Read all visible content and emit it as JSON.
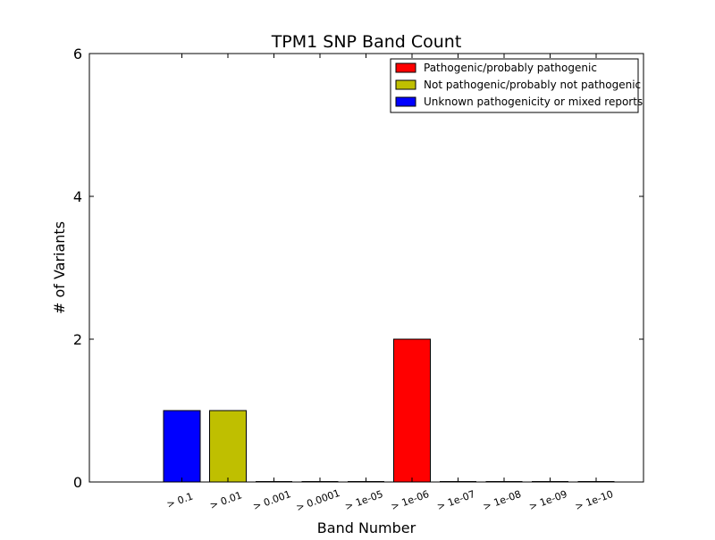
{
  "chart_data": {
    "type": "bar",
    "title": "TPM1 SNP Band Count",
    "xlabel": "Band Number",
    "ylabel": "# of Variants",
    "ylim": [
      0,
      6
    ],
    "yticks": [
      "0",
      "2",
      "4",
      "6"
    ],
    "categories": [
      "> 0.1",
      "> 0.01",
      "> 0.001",
      "> 0.0001",
      "> 1e-05",
      "> 1e-06",
      "> 1e-07",
      "> 1e-08",
      "> 1e-09",
      "> 1e-10"
    ],
    "series": [
      {
        "name": "Pathogenic/probably pathogenic",
        "color": "#ff0000",
        "values": [
          0,
          0,
          0,
          0,
          0,
          2,
          0,
          0,
          0,
          0
        ]
      },
      {
        "name": "Not pathogenic/probably not pathogenic",
        "color": "#bfbf00",
        "values": [
          0,
          1,
          0,
          0,
          0,
          0,
          0,
          0,
          0,
          0
        ]
      },
      {
        "name": "Unknown pathogenicity or mixed reports",
        "color": "#0000ff",
        "values": [
          1,
          0,
          0,
          0,
          0,
          0,
          0,
          0,
          0,
          0
        ]
      }
    ],
    "grid": false,
    "legend": "top-right"
  }
}
